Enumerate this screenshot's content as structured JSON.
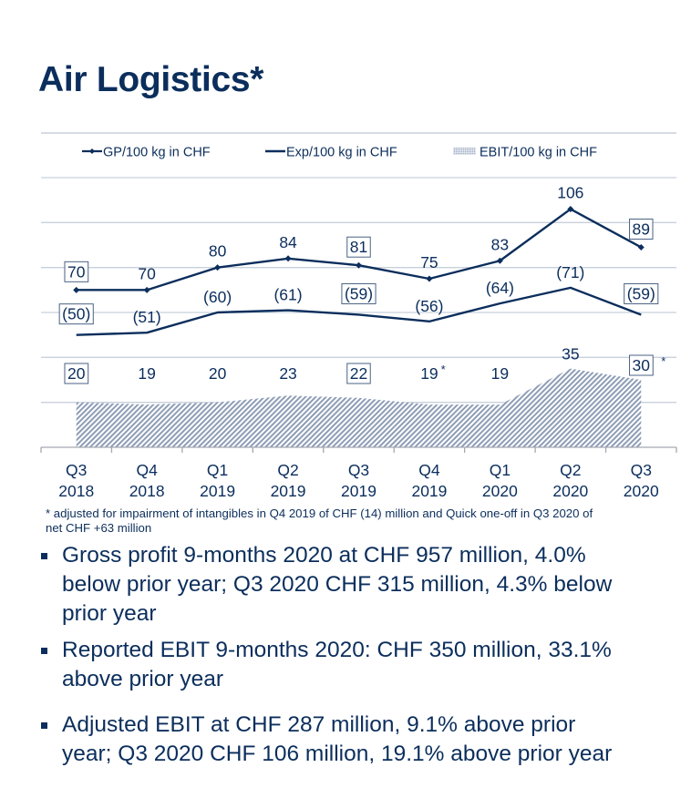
{
  "page": {
    "title": "Air Logistics*",
    "footnote_line1": "* adjusted for impairment of intangibles in Q4 2019 of CHF (14) million and Quick one-off in Q3 2020 of",
    "footnote_line2": "net CHF +63 million",
    "bullets": [
      {
        "lines": [
          "Gross profit 9-months 2020 at CHF 957 million, 4.0%",
          "below prior year; Q3 2020 CHF 315 million, 4.3% below",
          "prior year"
        ]
      },
      {
        "lines": [
          "Reported EBIT 9-months 2020: CHF 350 million, 33.1%",
          "above prior year"
        ]
      },
      {
        "lines": [
          "Adjusted EBIT at CHF 287 million, 9.1% above prior",
          "year; Q3 2020 CHF 106 million, 19.1% above prior year"
        ]
      }
    ]
  },
  "colors": {
    "navy": "#0b2e5c",
    "grid": "#c8d0dc",
    "hatch": "#9aa8bf"
  },
  "chart_data": {
    "type": "line",
    "title": "",
    "xlabel": "",
    "ylabel": "",
    "ylim": [
      0,
      120
    ],
    "grid": true,
    "legend_position": "top",
    "categories": [
      {
        "q": "Q3",
        "y": "2018"
      },
      {
        "q": "Q4",
        "y": "2018"
      },
      {
        "q": "Q1",
        "y": "2019"
      },
      {
        "q": "Q2",
        "y": "2019"
      },
      {
        "q": "Q3",
        "y": "2019"
      },
      {
        "q": "Q4",
        "y": "2019"
      },
      {
        "q": "Q1",
        "y": "2020"
      },
      {
        "q": "Q2",
        "y": "2020"
      },
      {
        "q": "Q3",
        "y": "2020"
      }
    ],
    "series": [
      {
        "name": "GP/100 kg in CHF",
        "kind": "line-marker",
        "values": [
          70,
          70,
          80,
          84,
          81,
          75,
          83,
          106,
          89
        ],
        "labels": [
          "70",
          "70",
          "80",
          "84",
          "81",
          "75",
          "83",
          "106",
          "89"
        ],
        "boxed": [
          true,
          false,
          false,
          false,
          true,
          false,
          false,
          false,
          true
        ]
      },
      {
        "name": "Exp/100 kg in CHF",
        "kind": "line",
        "values": [
          -50,
          -51,
          -60,
          -61,
          -59,
          -56,
          -64,
          -71,
          -59
        ],
        "labels": [
          "(50)",
          "(51)",
          "(60)",
          "(61)",
          "(59)",
          "(56)",
          "(64)",
          "(71)",
          "(59)"
        ],
        "boxed": [
          true,
          false,
          false,
          false,
          true,
          false,
          false,
          false,
          true
        ]
      },
      {
        "name": "EBIT/100 kg in CHF",
        "kind": "area",
        "values": [
          20,
          19,
          20,
          23,
          22,
          19,
          19,
          35,
          30
        ],
        "labels": [
          "20",
          "19",
          "20",
          "23",
          "22",
          "19",
          "19",
          "35",
          "30"
        ],
        "boxed": [
          true,
          false,
          false,
          false,
          true,
          false,
          false,
          false,
          true
        ],
        "asterisk": [
          false,
          false,
          false,
          false,
          false,
          true,
          false,
          false,
          true
        ]
      }
    ],
    "asterisk_symbol": "*"
  }
}
